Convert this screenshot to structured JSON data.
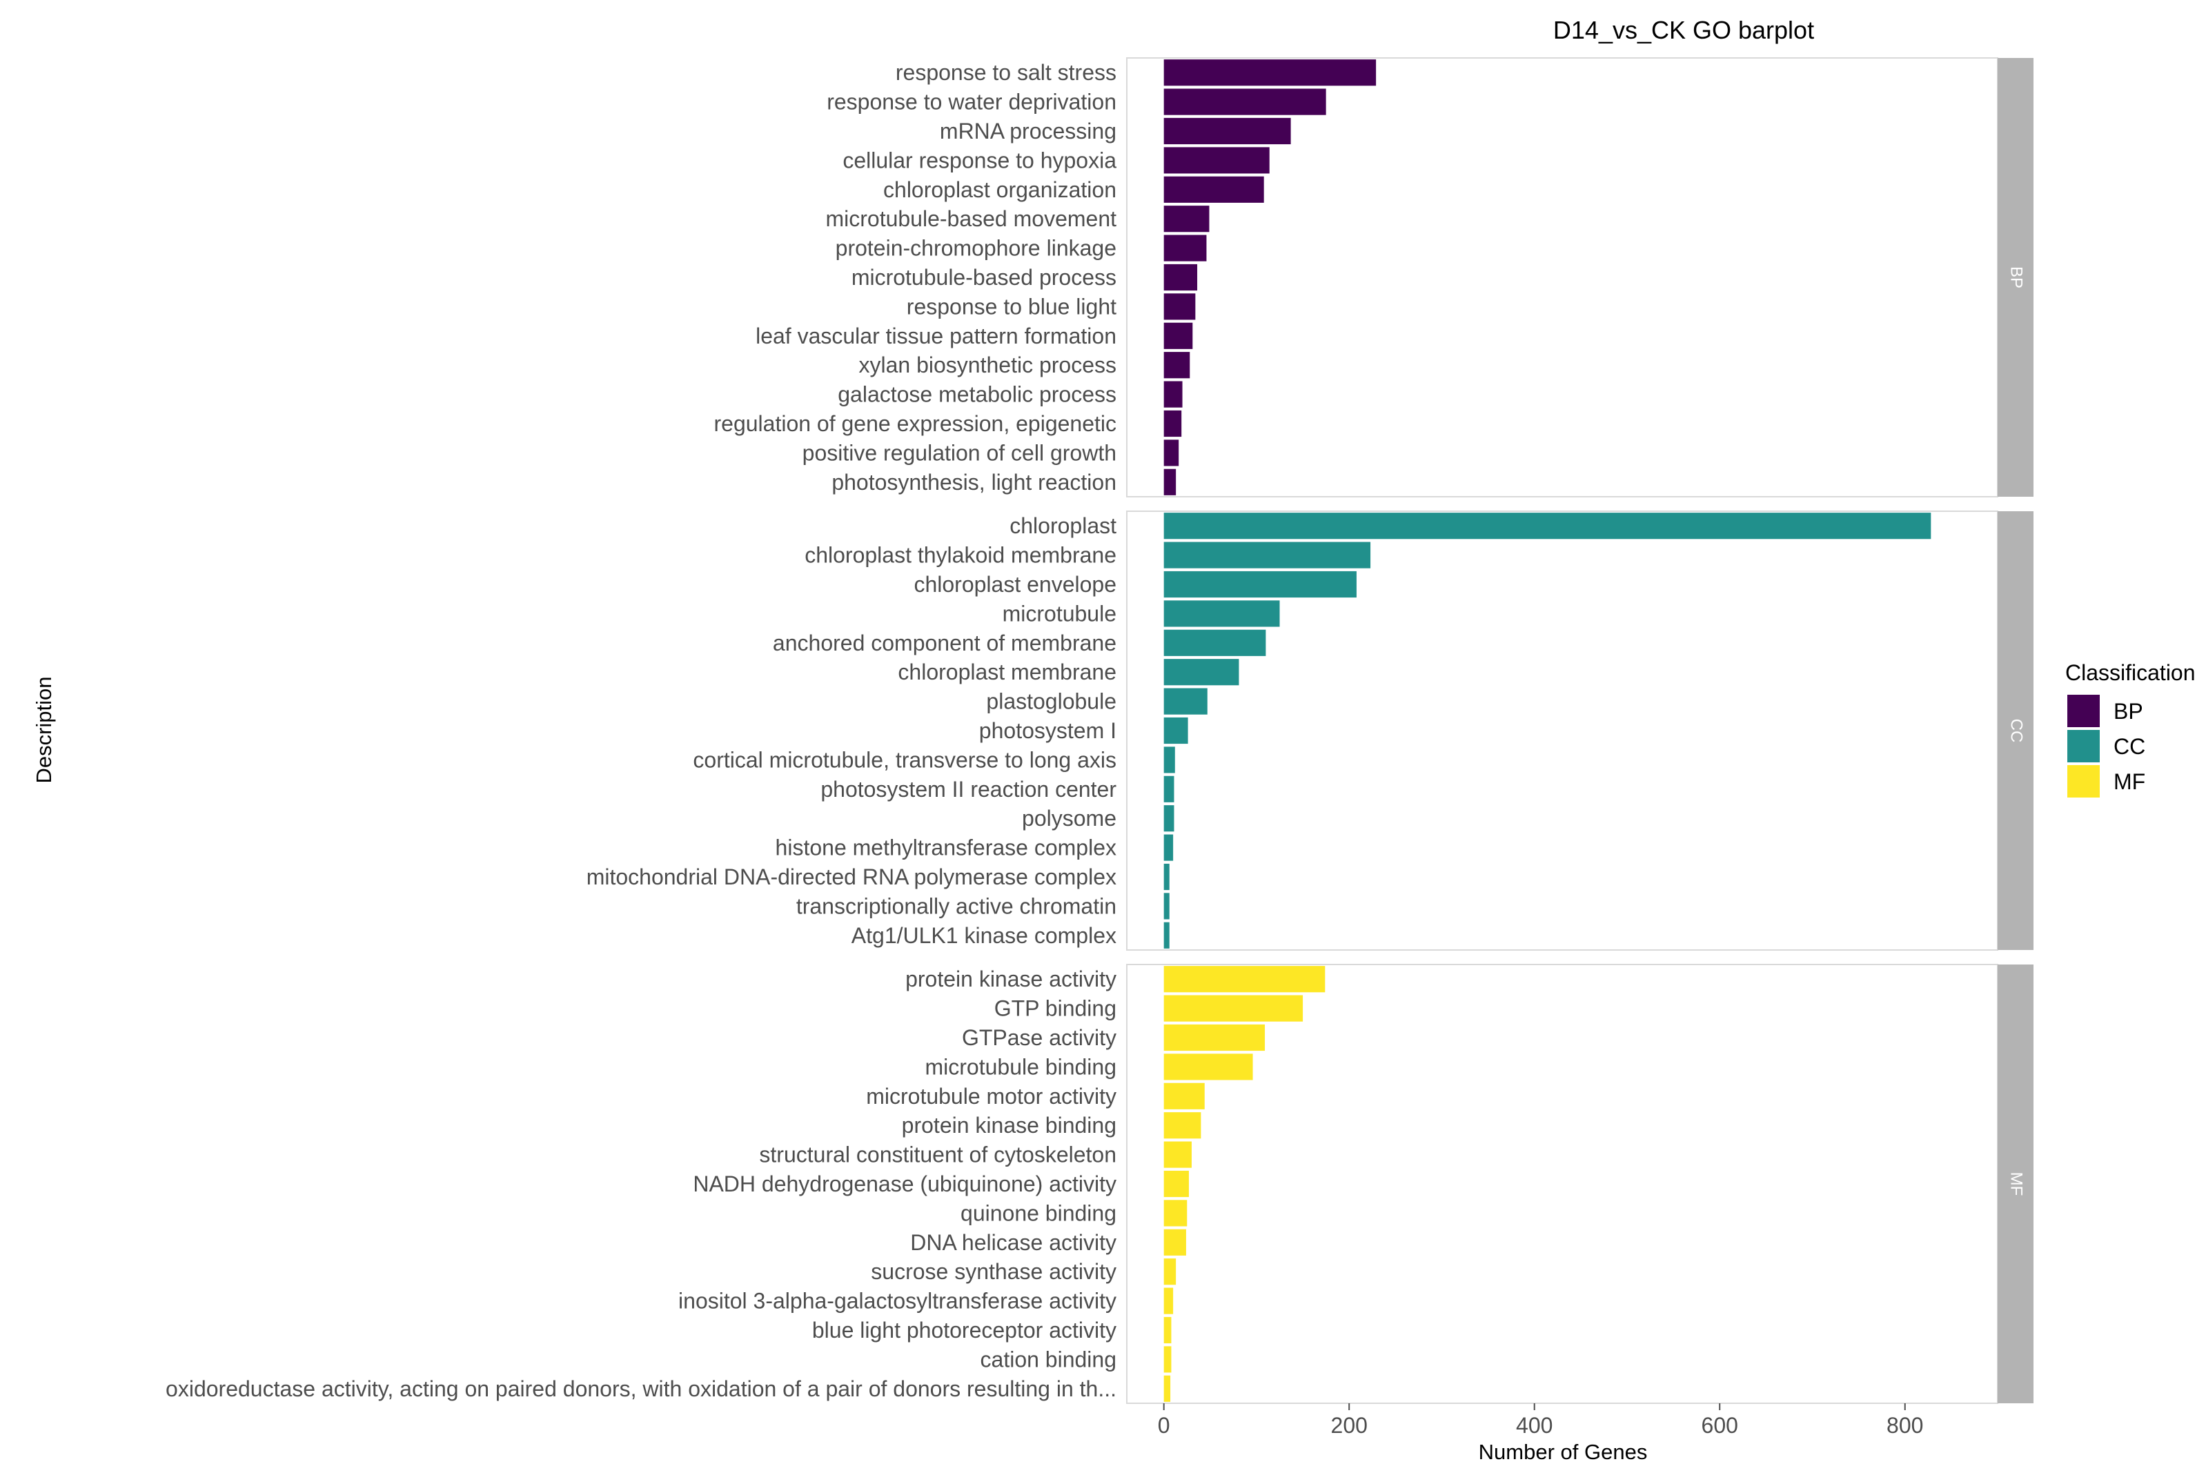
{
  "chart_data": {
    "type": "bar",
    "orientation": "horizontal",
    "title": "D14_vs_CK GO barplot",
    "xlabel": "Number of Genes",
    "ylabel": "Description",
    "xlim": [
      -40,
      900
    ],
    "xticks": [
      0,
      200,
      400,
      600,
      800
    ],
    "grid": false,
    "legend": {
      "title": "Classification",
      "position": "right",
      "items": [
        {
          "label": "BP",
          "color": "#440154"
        },
        {
          "label": "CC",
          "color": "#21908C"
        },
        {
          "label": "MF",
          "color": "#FDE725"
        }
      ]
    },
    "facets": [
      {
        "name": "BP",
        "color": "#440154",
        "categories": [
          "response to salt stress",
          "response to water deprivation",
          "mRNA processing",
          "cellular response to hypoxia",
          "chloroplast organization",
          "microtubule-based movement",
          "protein-chromophore linkage",
          "microtubule-based process",
          "response to blue light",
          "leaf vascular tissue pattern formation",
          "xylan biosynthetic process",
          "galactose metabolic process",
          "regulation of gene expression, epigenetic",
          "positive regulation of cell growth",
          "photosynthesis, light reaction"
        ],
        "values": [
          229,
          175,
          137,
          114,
          108,
          49,
          46,
          36,
          34,
          31,
          28,
          20,
          19,
          16,
          13
        ]
      },
      {
        "name": "CC",
        "color": "#21908C",
        "categories": [
          "chloroplast",
          "chloroplast thylakoid membrane",
          "chloroplast envelope",
          "microtubule",
          "anchored component of membrane",
          "chloroplast membrane",
          "plastoglobule",
          "photosystem I",
          "cortical microtubule, transverse to long axis",
          "photosystem II reaction center",
          "polysome",
          "histone methyltransferase complex",
          "mitochondrial DNA-directed RNA polymerase complex",
          "transcriptionally active chromatin",
          "Atg1/ULK1 kinase complex"
        ],
        "values": [
          828,
          223,
          208,
          125,
          110,
          81,
          47,
          26,
          12,
          11,
          11,
          10,
          6,
          6,
          6
        ]
      },
      {
        "name": "MF",
        "color": "#FDE725",
        "categories": [
          "protein kinase activity",
          "GTP binding",
          "GTPase activity",
          "microtubule binding",
          "microtubule motor activity",
          "protein kinase binding",
          "structural constituent of cytoskeleton",
          "NADH dehydrogenase (ubiquinone) activity",
          "quinone binding",
          "DNA helicase activity",
          "sucrose synthase activity",
          "inositol 3-alpha-galactosyltransferase activity",
          "blue light photoreceptor activity",
          "cation binding",
          "oxidoreductase activity, acting on paired donors, with oxidation of a pair of donors resulting in th..."
        ],
        "values": [
          174,
          150,
          109,
          96,
          44,
          40,
          30,
          27,
          25,
          24,
          13,
          10,
          8,
          8,
          7
        ]
      }
    ]
  }
}
